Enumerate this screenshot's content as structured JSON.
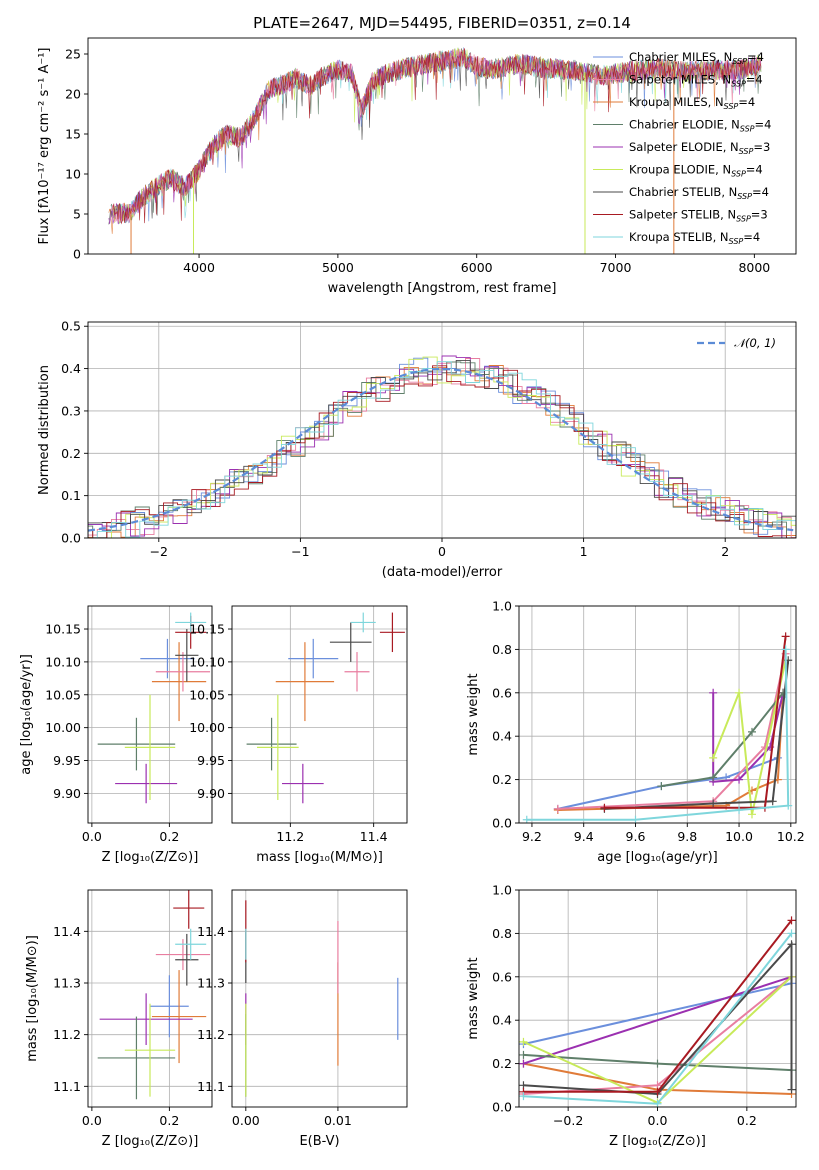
{
  "title": "PLATE=2647, MJD=54495, FIBERID=0351, z=0.14",
  "series_colors": [
    "#6b8fdc",
    "#e07b39",
    "#e87ea0",
    "#9b30b0",
    "#5f7f6a",
    "#c8ea5a",
    "#4a4a4a",
    "#a81a22",
    "#7fd6dc"
  ],
  "chart_data": [
    {
      "id": "spectrum",
      "type": "line",
      "xlabel": "wavelength [Angstrom, rest frame]",
      "ylabel": "Flux [fλ10⁻¹⁷ erg cm⁻² s⁻¹ A⁻¹]",
      "xlim": [
        3200,
        8300
      ],
      "ylim": [
        0,
        27
      ],
      "xticks": [
        "4000",
        "5000",
        "6000",
        "7000",
        "8000"
      ],
      "yticks": [
        "0",
        "5",
        "10",
        "15",
        "20",
        "25"
      ],
      "legend_placement": "right",
      "legend": [
        {
          "name": "Chabrier MILES, N",
          "sub": "SSP",
          "suffix": "=4",
          "color": "#6b8fdc"
        },
        {
          "name": "Salpeter MILES, N",
          "sub": "SSP",
          "suffix": "=4",
          "color": "#e87ea0"
        },
        {
          "name": "Kroupa MILES, N",
          "sub": "SSP",
          "suffix": "=4",
          "color": "#e07b39"
        },
        {
          "name": "Chabrier ELODIE, N",
          "sub": "SSP",
          "suffix": "=4",
          "color": "#5f7f6a"
        },
        {
          "name": "Salpeter ELODIE, N",
          "sub": "SSP",
          "suffix": "=3",
          "color": "#9b30b0"
        },
        {
          "name": "Kroupa ELODIE, N",
          "sub": "SSP",
          "suffix": "=4",
          "color": "#c8ea5a"
        },
        {
          "name": "Chabrier STELIB, N",
          "sub": "SSP",
          "suffix": "=4",
          "color": "#4a4a4a"
        },
        {
          "name": "Salpeter STELIB, N",
          "sub": "SSP",
          "suffix": "=3",
          "color": "#a81a22"
        },
        {
          "name": "Kroupa STELIB, N",
          "sub": "SSP",
          "suffix": "=4",
          "color": "#7fd6dc"
        }
      ],
      "continuum": [
        [
          3350,
          5.0
        ],
        [
          3500,
          5.2
        ],
        [
          3600,
          7.2
        ],
        [
          3700,
          8.5
        ],
        [
          3800,
          9.5
        ],
        [
          3900,
          8.3
        ],
        [
          4000,
          10.5
        ],
        [
          4100,
          13.5
        ],
        [
          4200,
          15.0
        ],
        [
          4300,
          14.5
        ],
        [
          4400,
          17.0
        ],
        [
          4500,
          20.5
        ],
        [
          4600,
          21.2
        ],
        [
          4700,
          22.0
        ],
        [
          4800,
          21.0
        ],
        [
          4900,
          22.3
        ],
        [
          5000,
          23.0
        ],
        [
          5100,
          22.5
        ],
        [
          5170,
          18.0
        ],
        [
          5250,
          21.5
        ],
        [
          5350,
          22.6
        ],
        [
          5500,
          23.3
        ],
        [
          5700,
          24.0
        ],
        [
          5900,
          24.6
        ],
        [
          6000,
          23.5
        ],
        [
          6100,
          23.0
        ],
        [
          6300,
          23.8
        ],
        [
          6500,
          23.2
        ],
        [
          6700,
          23.0
        ],
        [
          6900,
          22.3
        ],
        [
          7100,
          22.8
        ],
        [
          7300,
          23.2
        ],
        [
          7500,
          22.8
        ],
        [
          7700,
          23.0
        ],
        [
          7900,
          23.0
        ],
        [
          8050,
          23.8
        ]
      ],
      "drops": [
        [
          3510,
          0
        ],
        [
          3960,
          0
        ],
        [
          6780,
          0
        ],
        [
          7420,
          0
        ]
      ]
    },
    {
      "id": "residuals",
      "type": "line",
      "xlabel": "(data-model)/error",
      "ylabel": "Normed distribution",
      "xlim": [
        -2.5,
        2.5
      ],
      "ylim": [
        0,
        0.51
      ],
      "xticks": [
        "−2",
        "−1",
        "0",
        "1",
        "2"
      ],
      "yticks": [
        "0.0",
        "0.1",
        "0.2",
        "0.3",
        "0.4",
        "0.5"
      ],
      "legend": [
        {
          "name": "𝒩(0, 1)",
          "color": "#5b8bd6"
        }
      ],
      "legend_placement": "top-right"
    },
    {
      "id": "age-vs-Z",
      "type": "scatter",
      "xlabel": "Z [log₁₀(Z/Z⊙)]",
      "ylabel": "age  [log₁₀(age/yr)]",
      "xlim": [
        -0.01,
        0.31
      ],
      "ylim": [
        9.855,
        10.185
      ],
      "xticks": [
        "0.0",
        "0.2"
      ],
      "yticks": [
        "9.90",
        "9.95",
        "10.00",
        "10.05",
        "10.10",
        "10.15"
      ],
      "points": [
        {
          "x": 0.195,
          "y": 10.105,
          "xerr": 0.07,
          "yerr": 0.03,
          "c": 0
        },
        {
          "x": 0.225,
          "y": 10.07,
          "xerr": 0.07,
          "yerr": 0.06,
          "c": 1
        },
        {
          "x": 0.235,
          "y": 10.085,
          "xerr": 0.07,
          "yerr": 0.03,
          "c": 2
        },
        {
          "x": 0.14,
          "y": 9.915,
          "xerr": 0.08,
          "yerr": 0.03,
          "c": 3
        },
        {
          "x": 0.115,
          "y": 9.975,
          "xerr": 0.1,
          "yerr": 0.04,
          "c": 4
        },
        {
          "x": 0.15,
          "y": 9.97,
          "xerr": 0.065,
          "yerr": 0.08,
          "c": 5
        },
        {
          "x": 0.245,
          "y": 10.11,
          "xerr": 0.03,
          "yerr": 0.04,
          "c": 6
        },
        {
          "x": 0.255,
          "y": 10.145,
          "xerr": 0.04,
          "yerr": 0.025,
          "c": 7
        },
        {
          "x": 0.255,
          "y": 10.16,
          "xerr": 0.04,
          "yerr": 0.015,
          "c": 8
        }
      ]
    },
    {
      "id": "age-vs-mass",
      "type": "scatter",
      "xlabel": "mass [log₁₀(M/M⊙)]",
      "ylabel": "",
      "xlim": [
        11.06,
        11.48
      ],
      "ylim": [
        9.855,
        10.185
      ],
      "xticks": [
        "11.2",
        "11.4"
      ],
      "yticks": [
        "9.90",
        "9.95",
        "10.00",
        "10.05",
        "10.10",
        "10.15"
      ],
      "points": [
        {
          "x": 11.255,
          "y": 10.105,
          "xerr": 0.06,
          "yerr": 0.03,
          "c": 0
        },
        {
          "x": 11.235,
          "y": 10.07,
          "xerr": 0.07,
          "yerr": 0.06,
          "c": 1
        },
        {
          "x": 11.36,
          "y": 10.085,
          "xerr": 0.03,
          "yerr": 0.03,
          "c": 2
        },
        {
          "x": 11.23,
          "y": 9.915,
          "xerr": 0.05,
          "yerr": 0.03,
          "c": 3
        },
        {
          "x": 11.155,
          "y": 9.975,
          "xerr": 0.06,
          "yerr": 0.04,
          "c": 4
        },
        {
          "x": 11.17,
          "y": 9.97,
          "xerr": 0.05,
          "yerr": 0.08,
          "c": 5
        },
        {
          "x": 11.345,
          "y": 10.13,
          "xerr": 0.05,
          "yerr": 0.03,
          "c": 6
        },
        {
          "x": 11.445,
          "y": 10.145,
          "xerr": 0.03,
          "yerr": 0.03,
          "c": 7
        },
        {
          "x": 11.375,
          "y": 10.16,
          "xerr": 0.03,
          "yerr": 0.015,
          "c": 8
        }
      ]
    },
    {
      "id": "weight-vs-age",
      "type": "line",
      "xlabel": "age  [log₁₀(age/yr)]",
      "ylabel": "mass weight",
      "xlim": [
        9.15,
        10.22
      ],
      "ylim": [
        0,
        1.0
      ],
      "xticks": [
        "9.2",
        "9.4",
        "9.6",
        "9.8",
        "10.0",
        "10.2"
      ],
      "yticks": [
        "0.0",
        "0.2",
        "0.4",
        "0.6",
        "0.8",
        "1.0"
      ],
      "series": [
        {
          "c": 0,
          "points": [
            [
              9.3,
              0.065
            ],
            [
              9.7,
              0.17
            ],
            [
              9.95,
              0.21
            ],
            [
              10.15,
              0.3
            ],
            [
              10.17,
              0.58
            ]
          ]
        },
        {
          "c": 1,
          "points": [
            [
              9.3,
              0.06
            ],
            [
              9.95,
              0.08
            ],
            [
              10.05,
              0.15
            ],
            [
              10.15,
              0.2
            ],
            [
              10.17,
              0.6
            ]
          ]
        },
        {
          "c": 2,
          "points": [
            [
              9.3,
              0.065
            ],
            [
              9.9,
              0.1
            ],
            [
              10.1,
              0.35
            ],
            [
              10.18,
              0.78
            ]
          ]
        },
        {
          "c": 3,
          "points": [
            [
              9.9,
              0.6
            ],
            [
              9.9,
              0.19
            ],
            [
              10.0,
              0.2
            ],
            [
              10.12,
              0.35
            ],
            [
              10.17,
              0.6
            ]
          ]
        },
        {
          "c": 4,
          "points": [
            [
              9.7,
              0.17
            ],
            [
              9.9,
              0.21
            ],
            [
              10.05,
              0.42
            ],
            [
              10.17,
              0.6
            ]
          ]
        },
        {
          "c": 5,
          "points": [
            [
              9.9,
              0.3
            ],
            [
              10.0,
              0.6
            ],
            [
              10.05,
              0.04
            ],
            [
              10.18,
              0.75
            ]
          ]
        },
        {
          "c": 6,
          "points": [
            [
              9.48,
              0.065
            ],
            [
              9.9,
              0.09
            ],
            [
              10.13,
              0.1
            ],
            [
              10.19,
              0.75
            ]
          ]
        },
        {
          "c": 7,
          "points": [
            [
              9.48,
              0.07
            ],
            [
              10.1,
              0.07
            ],
            [
              10.18,
              0.86
            ]
          ]
        },
        {
          "c": 8,
          "points": [
            [
              9.18,
              0.015
            ],
            [
              9.6,
              0.015
            ],
            [
              10.0,
              0.06
            ],
            [
              10.19,
              0.08
            ],
            [
              10.18,
              0.8
            ]
          ]
        }
      ]
    },
    {
      "id": "mass-vs-Z",
      "type": "scatter",
      "xlabel": "Z [log₁₀(Z/Z⊙)]",
      "ylabel": "mass [log₁₀(M/M⊙)]",
      "xlim": [
        -0.01,
        0.31
      ],
      "ylim": [
        11.06,
        11.48
      ],
      "xticks": [
        "0.0",
        "0.2"
      ],
      "yticks": [
        "11.1",
        "11.2",
        "11.3",
        "11.4"
      ],
      "points": [
        {
          "x": 0.2,
          "y": 11.255,
          "xerr": 0.05,
          "yerr": 0.06,
          "c": 0
        },
        {
          "x": 0.225,
          "y": 11.235,
          "xerr": 0.07,
          "yerr": 0.09,
          "c": 1
        },
        {
          "x": 0.235,
          "y": 11.355,
          "xerr": 0.07,
          "yerr": 0.03,
          "c": 2
        },
        {
          "x": 0.14,
          "y": 11.23,
          "xerr": 0.12,
          "yerr": 0.05,
          "c": 3
        },
        {
          "x": 0.115,
          "y": 11.155,
          "xerr": 0.1,
          "yerr": 0.08,
          "c": 4
        },
        {
          "x": 0.15,
          "y": 11.17,
          "xerr": 0.065,
          "yerr": 0.09,
          "c": 5
        },
        {
          "x": 0.245,
          "y": 11.345,
          "xerr": 0.03,
          "yerr": 0.05,
          "c": 6
        },
        {
          "x": 0.25,
          "y": 11.445,
          "xerr": 0.04,
          "yerr": 0.04,
          "c": 7
        },
        {
          "x": 0.255,
          "y": 11.375,
          "xerr": 0.04,
          "yerr": 0.03,
          "c": 8
        }
      ]
    },
    {
      "id": "mass-vs-EBV",
      "type": "scatter",
      "xlabel": "E(B-V)",
      "ylabel": "",
      "xlim": [
        -0.0015,
        0.0175
      ],
      "ylim": [
        11.06,
        11.48
      ],
      "xticks": [
        "0.00",
        "0.01"
      ],
      "yticks": [
        "11.1",
        "11.2",
        "11.3",
        "11.4"
      ],
      "points": [
        {
          "x": 0.0165,
          "y": 11.25,
          "xerr": 0,
          "yerr": 0.06,
          "c": 0
        },
        {
          "x": 0.01,
          "y": 11.24,
          "xerr": 0,
          "yerr": 0.1,
          "c": 1
        },
        {
          "x": 0.01,
          "y": 11.35,
          "xerr": 0,
          "yerr": 0.07,
          "c": 2
        },
        {
          "x": 0.0,
          "y": 11.23,
          "xerr": 0,
          "yerr": 0.05,
          "c": 3
        },
        {
          "x": 0.0,
          "y": 11.16,
          "xerr": 0,
          "yerr": 0.08,
          "c": 4
        },
        {
          "x": 0.0,
          "y": 11.17,
          "xerr": 0,
          "yerr": 0.09,
          "c": 5
        },
        {
          "x": 0.0,
          "y": 11.35,
          "xerr": 0,
          "yerr": 0.05,
          "c": 6
        },
        {
          "x": 0.0,
          "y": 11.4,
          "xerr": 0,
          "yerr": 0.06,
          "c": 7
        },
        {
          "x": 0.0,
          "y": 11.375,
          "xerr": 0,
          "yerr": 0.03,
          "c": 8
        }
      ]
    },
    {
      "id": "weight-vs-Z",
      "type": "line",
      "xlabel": "Z [log₁₀(Z/Z⊙)]",
      "ylabel": "mass weight",
      "xlim": [
        -0.31,
        0.31
      ],
      "ylim": [
        0,
        1.0
      ],
      "xticks": [
        "−0.2",
        "0.0",
        "0.2"
      ],
      "yticks": [
        "0.0",
        "0.2",
        "0.4",
        "0.6",
        "0.8",
        "1.0"
      ],
      "series": [
        {
          "c": 0,
          "points": [
            [
              -0.3,
              0.29
            ],
            [
              0.3,
              0.57
            ]
          ]
        },
        {
          "c": 1,
          "points": [
            [
              -0.3,
              0.2
            ],
            [
              0.0,
              0.08
            ],
            [
              0.3,
              0.06
            ]
          ]
        },
        {
          "c": 2,
          "points": [
            [
              -0.3,
              0.06
            ],
            [
              0.0,
              0.1
            ],
            [
              0.3,
              0.6
            ]
          ]
        },
        {
          "c": 3,
          "points": [
            [
              -0.3,
              0.2
            ],
            [
              0.3,
              0.6
            ]
          ]
        },
        {
          "c": 4,
          "points": [
            [
              -0.3,
              0.24
            ],
            [
              0.0,
              0.2
            ],
            [
              0.3,
              0.17
            ]
          ]
        },
        {
          "c": 5,
          "points": [
            [
              -0.3,
              0.3
            ],
            [
              0.0,
              0.02
            ],
            [
              0.3,
              0.6
            ]
          ]
        },
        {
          "c": 6,
          "points": [
            [
              -0.3,
              0.1
            ],
            [
              0.0,
              0.06
            ],
            [
              0.3,
              0.75
            ],
            [
              0.3,
              0.08
            ]
          ]
        },
        {
          "c": 7,
          "points": [
            [
              -0.3,
              0.07
            ],
            [
              0.0,
              0.07
            ],
            [
              0.3,
              0.86
            ]
          ]
        },
        {
          "c": 8,
          "points": [
            [
              -0.3,
              0.05
            ],
            [
              0.0,
              0.015
            ],
            [
              0.3,
              0.8
            ]
          ]
        }
      ]
    }
  ]
}
